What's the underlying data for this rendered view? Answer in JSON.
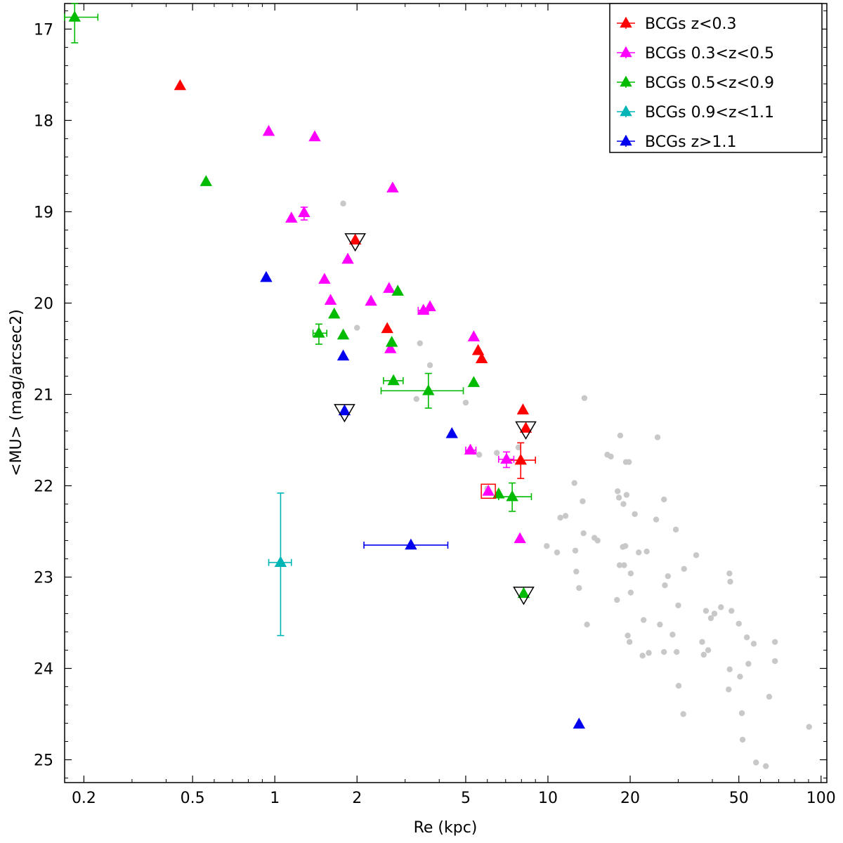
{
  "chart_data": {
    "type": "scatter",
    "title": "",
    "xlabel": "Re (kpc)",
    "ylabel": "<MU> (mag/arcsec2)",
    "xscale": "log",
    "xlim": [
      0.17,
      105
    ],
    "ylim": [
      25.25,
      16.72
    ],
    "y_inverted": true,
    "grid": false,
    "legend_position": "top-right",
    "x_ticks": [
      {
        "value": 0.2,
        "label": "0.2"
      },
      {
        "value": 0.5,
        "label": "0.5"
      },
      {
        "value": 1,
        "label": "1"
      },
      {
        "value": 2,
        "label": "2"
      },
      {
        "value": 5,
        "label": "5"
      },
      {
        "value": 10,
        "label": "10"
      },
      {
        "value": 20,
        "label": "20"
      },
      {
        "value": 50,
        "label": "50"
      },
      {
        "value": 100,
        "label": "100"
      }
    ],
    "y_ticks": [
      {
        "value": 17,
        "label": "17"
      },
      {
        "value": 18,
        "label": "18"
      },
      {
        "value": 19,
        "label": "19"
      },
      {
        "value": 20,
        "label": "20"
      },
      {
        "value": 21,
        "label": "21"
      },
      {
        "value": 22,
        "label": "22"
      },
      {
        "value": 23,
        "label": "23"
      },
      {
        "value": 24,
        "label": "24"
      },
      {
        "value": 25,
        "label": "25"
      }
    ],
    "series": [
      {
        "name": "BCGs z<0.3",
        "color": "#ff0000",
        "points": [
          {
            "x": 0.45,
            "y": 17.62
          },
          {
            "x": 1.97,
            "y": 19.31
          },
          {
            "x": 2.58,
            "y": 20.28
          },
          {
            "x": 5.55,
            "y": 20.52
          },
          {
            "x": 5.72,
            "y": 20.61
          },
          {
            "x": 8.1,
            "y": 21.17
          },
          {
            "x": 8.3,
            "y": 21.37
          },
          {
            "x": 7.95,
            "y": 21.72,
            "xerr": [
              7.0,
              9.0
            ],
            "yerr": [
              21.53,
              21.92
            ]
          }
        ]
      },
      {
        "name": "BCGs 0.3<z<0.5",
        "color": "#ff00ff",
        "points": [
          {
            "x": 0.95,
            "y": 18.12
          },
          {
            "x": 1.4,
            "y": 18.18
          },
          {
            "x": 2.7,
            "y": 18.74
          },
          {
            "x": 1.15,
            "y": 19.07
          },
          {
            "x": 1.28,
            "y": 19.01,
            "yerr": [
              18.95,
              19.09
            ]
          },
          {
            "x": 1.85,
            "y": 19.52
          },
          {
            "x": 1.52,
            "y": 19.74
          },
          {
            "x": 1.6,
            "y": 19.97
          },
          {
            "x": 2.25,
            "y": 19.98
          },
          {
            "x": 2.62,
            "y": 19.84
          },
          {
            "x": 3.5,
            "y": 20.08,
            "xerr": [
              3.35,
              3.65
            ]
          },
          {
            "x": 3.7,
            "y": 20.04
          },
          {
            "x": 2.65,
            "y": 20.5
          },
          {
            "x": 5.35,
            "y": 20.37
          },
          {
            "x": 5.2,
            "y": 21.61,
            "xerr": [
              5.0,
              5.45
            ]
          },
          {
            "x": 7.05,
            "y": 21.71,
            "xerr": [
              6.6,
              7.5
            ],
            "yerr": [
              21.63,
              21.8
            ]
          },
          {
            "x": 6.05,
            "y": 22.06
          },
          {
            "x": 7.9,
            "y": 22.58
          }
        ]
      },
      {
        "name": "BCGs 0.5<z<0.9",
        "color": "#00bb00",
        "points": [
          {
            "x": 0.185,
            "y": 16.87,
            "xerr": [
              0.17,
              0.225
            ],
            "yerr": [
              16.72,
              17.15
            ]
          },
          {
            "x": 0.56,
            "y": 18.67
          },
          {
            "x": 2.82,
            "y": 19.87
          },
          {
            "x": 1.65,
            "y": 20.12
          },
          {
            "x": 1.45,
            "y": 20.33,
            "xerr": [
              1.38,
              1.55
            ],
            "yerr": [
              20.23,
              20.45
            ]
          },
          {
            "x": 1.78,
            "y": 20.35
          },
          {
            "x": 2.68,
            "y": 20.43
          },
          {
            "x": 2.72,
            "y": 20.85,
            "xerr": [
              2.5,
              2.95
            ]
          },
          {
            "x": 3.65,
            "y": 20.96,
            "xerr": [
              2.45,
              4.9
            ],
            "yerr": [
              20.77,
              21.15
            ]
          },
          {
            "x": 5.35,
            "y": 20.87
          },
          {
            "x": 6.6,
            "y": 22.09
          },
          {
            "x": 7.4,
            "y": 22.12,
            "xerr": [
              6.6,
              8.7
            ],
            "yerr": [
              21.97,
              22.28
            ]
          },
          {
            "x": 8.15,
            "y": 23.18
          }
        ]
      },
      {
        "name": "BCGs 0.9<z<1.1",
        "color": "#00b5b5",
        "points": [
          {
            "x": 1.05,
            "y": 22.84,
            "xerr": [
              0.95,
              1.15
            ],
            "yerr": [
              22.08,
              23.64
            ]
          }
        ]
      },
      {
        "name": "BCGs z>1.1",
        "color": "#0000ee",
        "points": [
          {
            "x": 0.93,
            "y": 19.72
          },
          {
            "x": 1.78,
            "y": 20.58
          },
          {
            "x": 1.8,
            "y": 21.18
          },
          {
            "x": 4.45,
            "y": 21.43
          },
          {
            "x": 3.15,
            "y": 22.65,
            "xerr": [
              2.12,
              4.3
            ]
          },
          {
            "x": 13.0,
            "y": 24.61
          }
        ]
      }
    ],
    "highlighted_triangles": [
      {
        "x": 1.97,
        "y": 19.31
      },
      {
        "x": 1.8,
        "y": 21.18
      },
      {
        "x": 8.3,
        "y": 21.37
      },
      {
        "x": 8.15,
        "y": 23.18
      }
    ],
    "highlighted_square": {
      "x": 6.05,
      "y": 22.06
    },
    "background_points": [
      {
        "x": 1.78,
        "y": 18.91
      },
      {
        "x": 2.0,
        "y": 20.27
      },
      {
        "x": 3.4,
        "y": 20.44
      },
      {
        "x": 3.7,
        "y": 20.68
      },
      {
        "x": 3.3,
        "y": 21.05
      },
      {
        "x": 5.0,
        "y": 21.09
      },
      {
        "x": 5.6,
        "y": 21.66
      },
      {
        "x": 6.5,
        "y": 21.64
      },
      {
        "x": 6.0,
        "y": 22.03
      },
      {
        "x": 7.8,
        "y": 21.58
      },
      {
        "x": 13.6,
        "y": 21.04
      },
      {
        "x": 14.8,
        "y": 22.57
      },
      {
        "x": 12.5,
        "y": 21.97
      },
      {
        "x": 11.6,
        "y": 22.33
      },
      {
        "x": 11.1,
        "y": 22.35
      },
      {
        "x": 13.4,
        "y": 22.17
      },
      {
        "x": 13.5,
        "y": 22.52
      },
      {
        "x": 9.9,
        "y": 22.66
      },
      {
        "x": 10.8,
        "y": 22.73
      },
      {
        "x": 12.6,
        "y": 22.71
      },
      {
        "x": 12.7,
        "y": 22.94
      },
      {
        "x": 13.0,
        "y": 23.12
      },
      {
        "x": 13.9,
        "y": 23.52
      },
      {
        "x": 15.2,
        "y": 22.6
      },
      {
        "x": 16.5,
        "y": 21.66
      },
      {
        "x": 17.0,
        "y": 21.68
      },
      {
        "x": 18.4,
        "y": 21.45
      },
      {
        "x": 19.3,
        "y": 21.74
      },
      {
        "x": 19.8,
        "y": 21.74
      },
      {
        "x": 18.0,
        "y": 22.06
      },
      {
        "x": 18.2,
        "y": 22.13
      },
      {
        "x": 18.9,
        "y": 22.2
      },
      {
        "x": 19.4,
        "y": 22.1
      },
      {
        "x": 20.8,
        "y": 22.31
      },
      {
        "x": 18.3,
        "y": 22.87
      },
      {
        "x": 19.0,
        "y": 22.87
      },
      {
        "x": 20.1,
        "y": 22.96
      },
      {
        "x": 21.5,
        "y": 22.73
      },
      {
        "x": 18.8,
        "y": 22.67
      },
      {
        "x": 19.2,
        "y": 22.66
      },
      {
        "x": 24.9,
        "y": 22.37
      },
      {
        "x": 26.6,
        "y": 22.15
      },
      {
        "x": 25.2,
        "y": 21.47
      },
      {
        "x": 23.0,
        "y": 22.72
      },
      {
        "x": 26.8,
        "y": 23.09
      },
      {
        "x": 20.1,
        "y": 23.17
      },
      {
        "x": 17.9,
        "y": 23.25
      },
      {
        "x": 22.4,
        "y": 23.47
      },
      {
        "x": 25.7,
        "y": 23.52
      },
      {
        "x": 19.6,
        "y": 23.64
      },
      {
        "x": 19.9,
        "y": 23.71
      },
      {
        "x": 23.4,
        "y": 23.83
      },
      {
        "x": 22.2,
        "y": 23.86
      },
      {
        "x": 26.6,
        "y": 23.82
      },
      {
        "x": 28.6,
        "y": 23.63
      },
      {
        "x": 29.6,
        "y": 23.82
      },
      {
        "x": 29.4,
        "y": 22.48
      },
      {
        "x": 27.5,
        "y": 22.99
      },
      {
        "x": 30.0,
        "y": 23.31
      },
      {
        "x": 30.1,
        "y": 24.19
      },
      {
        "x": 31.3,
        "y": 24.5
      },
      {
        "x": 31.5,
        "y": 22.91
      },
      {
        "x": 34.9,
        "y": 22.76
      },
      {
        "x": 36.7,
        "y": 23.71
      },
      {
        "x": 37.2,
        "y": 23.85
      },
      {
        "x": 37.9,
        "y": 23.37
      },
      {
        "x": 38.6,
        "y": 23.8
      },
      {
        "x": 39.5,
        "y": 23.45
      },
      {
        "x": 40.7,
        "y": 23.4
      },
      {
        "x": 43.0,
        "y": 23.33
      },
      {
        "x": 46.2,
        "y": 22.96
      },
      {
        "x": 46.5,
        "y": 23.05
      },
      {
        "x": 47.0,
        "y": 23.37
      },
      {
        "x": 46.3,
        "y": 24.01
      },
      {
        "x": 45.9,
        "y": 24.23
      },
      {
        "x": 50.0,
        "y": 23.51
      },
      {
        "x": 50.5,
        "y": 24.09
      },
      {
        "x": 51.3,
        "y": 24.49
      },
      {
        "x": 51.6,
        "y": 24.78
      },
      {
        "x": 53.5,
        "y": 23.66
      },
      {
        "x": 54.2,
        "y": 23.95
      },
      {
        "x": 56.7,
        "y": 23.73
      },
      {
        "x": 57.8,
        "y": 25.03
      },
      {
        "x": 62.8,
        "y": 25.07
      },
      {
        "x": 64.6,
        "y": 24.31
      },
      {
        "x": 67.8,
        "y": 23.71
      },
      {
        "x": 67.8,
        "y": 23.92
      },
      {
        "x": 90.4,
        "y": 24.64
      }
    ]
  }
}
